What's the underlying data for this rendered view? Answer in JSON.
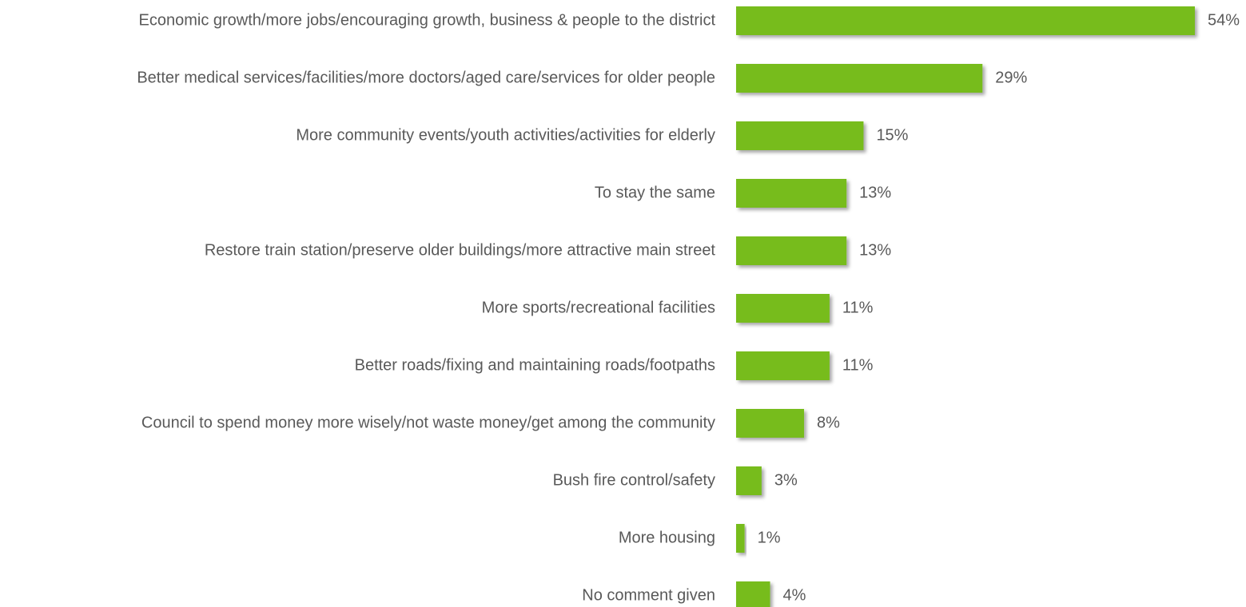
{
  "chart_data": {
    "type": "bar",
    "orientation": "horizontal",
    "categories": [
      "Economic growth/more jobs/encouraging growth, business & people to the district",
      "Better medical services/facilities/more doctors/aged care/services for older people",
      "More community events/youth activities/activities for elderly",
      "To stay the same",
      "Restore train station/preserve older buildings/more attractive main street",
      "More sports/recreational facilities",
      "Better roads/fixing and maintaining roads/footpaths",
      "Council to spend money more wisely/not waste money/get among the community",
      "Bush fire control/safety",
      "More housing",
      "No comment given"
    ],
    "values": [
      54,
      29,
      15,
      13,
      13,
      11,
      11,
      8,
      3,
      1,
      4
    ],
    "value_labels": [
      "54%",
      "29%",
      "15%",
      "13%",
      "13%",
      "11%",
      "11%",
      "8%",
      "3%",
      "1%",
      "4%"
    ],
    "color": "#77bc1f"
  }
}
